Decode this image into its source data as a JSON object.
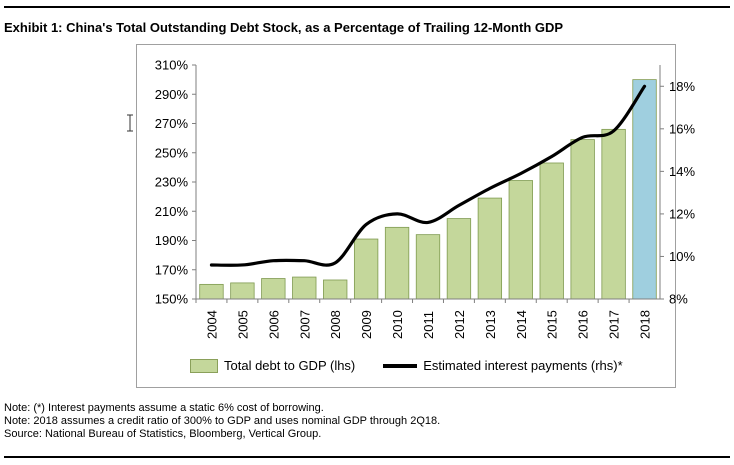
{
  "header": {
    "title": "Exhibit 1: China's Total Outstanding Debt Stock, as a Percentage of Trailing 12-Month GDP"
  },
  "chart_data": {
    "type": "bar",
    "categories": [
      "2004",
      "2005",
      "2006",
      "2007",
      "2008",
      "2009",
      "2010",
      "2011",
      "2012",
      "2013",
      "2014",
      "2015",
      "2016",
      "2017",
      "2018"
    ],
    "series": [
      {
        "name": "Total debt to GDP (lhs)",
        "axis": "left",
        "values": [
          160,
          161,
          164,
          165,
          163,
          191,
          199,
          194,
          205,
          219,
          231,
          243,
          259,
          266,
          300
        ],
        "color": "#c4d79b",
        "highlight_color": "#9fcfdf",
        "highlight_category": "2018"
      },
      {
        "name": "Estimated interest payments (rhs)*",
        "axis": "right",
        "type": "line",
        "x": [
          0,
          1,
          2,
          3,
          4,
          5,
          6,
          7,
          8,
          9,
          10,
          11,
          12,
          13,
          14
        ],
        "values": [
          9.6,
          9.6,
          9.8,
          9.8,
          9.7,
          11.5,
          12.0,
          11.6,
          12.4,
          13.2,
          13.9,
          14.7,
          15.6,
          15.9,
          18.0
        ],
        "color": "#000000"
      }
    ],
    "y_left": {
      "min": 150,
      "max": 310,
      "ticks": [
        "310%",
        "290%",
        "270%",
        "250%",
        "230%",
        "210%",
        "190%",
        "170%",
        "150%"
      ]
    },
    "y_right": {
      "min": 8,
      "max": 19,
      "ticks": [
        "18%",
        "16%",
        "14%",
        "12%",
        "10%",
        "8%"
      ]
    },
    "legend": [
      "Total debt to GDP (lhs)",
      "Estimated interest payments (rhs)*"
    ],
    "legend_position": "bottom",
    "grid": false
  },
  "notes": [
    "Note: (*) Interest payments assume a static 6% cost of borrowing.",
    "Note: 2018 assumes a credit ratio of 300% to GDP and uses nominal GDP through 2Q18.",
    "Source: National Bureau of Statistics, Bloomberg, Vertical Group."
  ]
}
